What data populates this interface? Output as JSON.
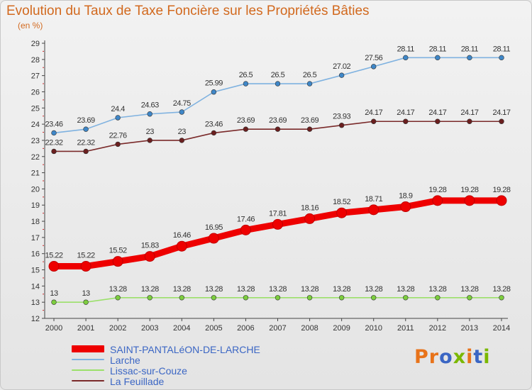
{
  "title": "Evolution du Taux de Taxe Foncière sur les Propriétés Bâties",
  "subtitle": "(en %)",
  "logo_text": "Proxiti",
  "colors": {
    "title": "#d2691e",
    "legend_text": "#3b66c4",
    "logo_letters": [
      "#e8731a",
      "#e8731a",
      "#3b66c4",
      "#7ab800",
      "#e8731a",
      "#3b66c4",
      "#7ab800"
    ]
  },
  "chart_data": {
    "type": "line",
    "title": "Evolution du Taux de Taxe Foncière sur les Propriétés Bâties",
    "ylabel": "(en %)",
    "xlabel": "",
    "x": [
      "2000",
      "2001",
      "2002",
      "2003",
      "2004",
      "2005",
      "2006",
      "2007",
      "2008",
      "2009",
      "2010",
      "2011",
      "2012",
      "2013",
      "2014"
    ],
    "ylim": [
      12,
      29
    ],
    "yticks": [
      "12",
      "13",
      "14",
      "15",
      "16",
      "17",
      "18",
      "19",
      "20",
      "21",
      "22",
      "23",
      "24",
      "25",
      "26",
      "27",
      "28",
      "29"
    ],
    "grid": false,
    "legend_position": "bottom-left",
    "series": [
      {
        "name": "SAINT-PANTALéON-DE-LARCHE",
        "color": "#ee0000",
        "style": "thick",
        "values": [
          15.22,
          15.22,
          15.52,
          15.83,
          16.46,
          16.95,
          17.46,
          17.81,
          18.16,
          18.52,
          18.71,
          18.9,
          19.28,
          19.28,
          19.28
        ],
        "labels": [
          "15.22",
          "15.22",
          "15.52",
          "15.83",
          "16.46",
          "16.95",
          "17.46",
          "17.81",
          "18.16",
          "18.52",
          "18.71",
          "18.9",
          "19.28",
          "19.28",
          "19.28"
        ]
      },
      {
        "name": "Larche",
        "color": "#7fb2e0",
        "marker_color": "#3f87c8",
        "values": [
          23.46,
          23.69,
          24.4,
          24.63,
          24.75,
          25.99,
          26.5,
          26.5,
          26.5,
          27.02,
          27.56,
          28.11,
          28.11,
          28.11,
          28.11
        ],
        "labels": [
          "23.46",
          "23.69",
          "24.4",
          "24.63",
          "24.75",
          "25.99",
          "26.5",
          "26.5",
          "26.5",
          "27.02",
          "27.56",
          "28.11",
          "28.11",
          "28.11",
          "28.11"
        ]
      },
      {
        "name": "Lissac-sur-Couze",
        "color": "#9be06a",
        "marker_color": "#7ccd3e",
        "values": [
          13,
          13,
          13.28,
          13.28,
          13.28,
          13.28,
          13.28,
          13.28,
          13.28,
          13.28,
          13.28,
          13.28,
          13.28,
          13.28,
          13.28
        ],
        "labels": [
          "13",
          "13",
          "13.28",
          "13.28",
          "13.28",
          "13.28",
          "13.28",
          "13.28",
          "13.28",
          "13.28",
          "13.28",
          "13.28",
          "13.28",
          "13.28",
          "13.28"
        ]
      },
      {
        "name": "La Feuillade",
        "color": "#7a2a2a",
        "marker_color": "#6b1f1f",
        "values": [
          22.32,
          22.32,
          22.76,
          23,
          23,
          23.46,
          23.69,
          23.69,
          23.69,
          23.93,
          24.17,
          24.17,
          24.17,
          24.17,
          24.17
        ],
        "labels": [
          "22.32",
          "22.32",
          "22.76",
          "23",
          "23",
          "23.46",
          "23.69",
          "23.69",
          "23.69",
          "23.93",
          "24.17",
          "24.17",
          "24.17",
          "24.17",
          "24.17"
        ]
      }
    ]
  }
}
